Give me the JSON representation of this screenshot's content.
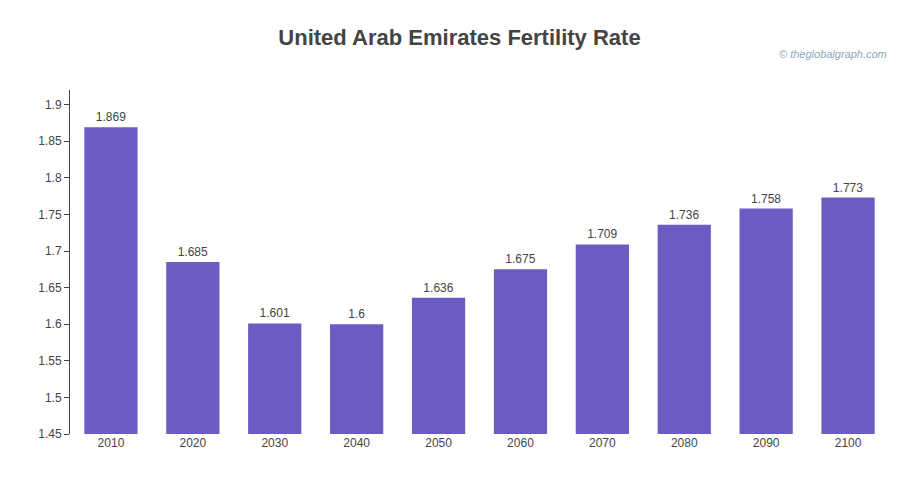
{
  "chart_data": {
    "type": "bar",
    "title": "United Arab Emirates Fertility Rate",
    "categories": [
      "2010",
      "2020",
      "2030",
      "2040",
      "2050",
      "2060",
      "2070",
      "2080",
      "2090",
      "2100"
    ],
    "values": [
      1.869,
      1.685,
      1.601,
      1.6,
      1.636,
      1.675,
      1.709,
      1.736,
      1.758,
      1.773
    ],
    "color": "#6B5CC4",
    "ylim": [
      1.45,
      1.92
    ],
    "yticks": [
      1.45,
      1.5,
      1.55,
      1.6,
      1.65,
      1.7,
      1.75,
      1.8,
      1.85,
      1.9
    ],
    "grid": false,
    "data_labels": true,
    "annotations": [
      "© theglobalgraph.com"
    ]
  }
}
